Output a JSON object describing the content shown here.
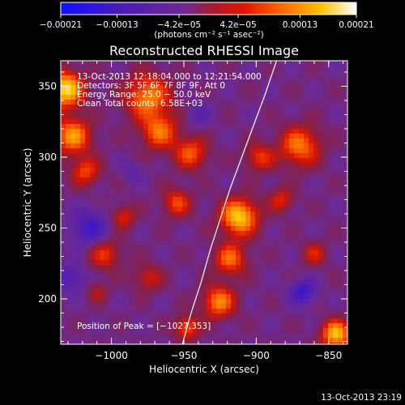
{
  "chart_data": {
    "type": "heatmap",
    "title": "Reconstructed RHESSI Image",
    "xlabel": "Heliocentric X (arcsec)",
    "ylabel": "Heliocentric Y (arcsec)",
    "xlim": [
      -1035,
      -837
    ],
    "ylim": [
      168,
      368
    ],
    "xticks": [
      -1000,
      -950,
      -900,
      -850
    ],
    "xtick_labels": [
      "−1000",
      "−950",
      "−900",
      "−850"
    ],
    "yticks": [
      200,
      250,
      300,
      350
    ],
    "ytick_labels": [
      "200",
      "250",
      "300",
      "350"
    ],
    "colorbar": {
      "colormap": "blue-purple-red-yellow-white",
      "range": [
        -0.00021,
        0.00021
      ],
      "tick_values": [
        -0.00021,
        -0.00013,
        -4.2e-05,
        4.2e-05,
        0.00013,
        0.00021
      ],
      "tick_labels": [
        "−0.00021",
        "−0.00013",
        "−4.2e−05",
        "4.2e−05",
        "0.00013",
        "0.00021"
      ],
      "units": "(photons cm⁻² s⁻¹ asec⁻²)",
      "colors": [
        "#1010ff",
        "#5a1aa8",
        "#7a2a9a",
        "#c01818",
        "#ff3000",
        "#ff8a00",
        "#ffd000",
        "#ffffff"
      ]
    },
    "annotations": [
      "13-Oct-2013 12:18:04.000 to 12:21:54.000",
      "Detectors: 3F 5F 6F 7F 8F 9F, Att 0",
      "Energy Range: 25.0 − 50.0 keV",
      "Clean     Total counts: 6.58E+03"
    ],
    "peak_label": "Position of Peak = [−1027,353]",
    "limb_curve": {
      "x": [
        -951,
        -945,
        -938,
        -932,
        -925,
        -918,
        -910,
        -902,
        -894,
        -886
      ],
      "y": [
        168,
        190,
        212,
        234,
        256,
        278,
        300,
        322,
        344,
        368
      ]
    },
    "sources": [
      {
        "x": -1032,
        "y": 348,
        "sigma": 9,
        "value": 0.00021
      },
      {
        "x": -1027,
        "y": 315,
        "sigma": 9,
        "value": 0.00016
      },
      {
        "x": -1018,
        "y": 290,
        "sigma": 7,
        "value": 0.00011
      },
      {
        "x": -1005,
        "y": 232,
        "sigma": 8,
        "value": 0.0001
      },
      {
        "x": -992,
        "y": 258,
        "sigma": 6,
        "value": 9e-05
      },
      {
        "x": -975,
        "y": 343,
        "sigma": 11,
        "value": 0.00015
      },
      {
        "x": -967,
        "y": 318,
        "sigma": 9,
        "value": 0.00013
      },
      {
        "x": -955,
        "y": 268,
        "sigma": 7,
        "value": 0.00011
      },
      {
        "x": -945,
        "y": 303,
        "sigma": 8,
        "value": 0.00012
      },
      {
        "x": -975,
        "y": 215,
        "sigma": 7,
        "value": 8e-05
      },
      {
        "x": -912,
        "y": 258,
        "sigma": 9,
        "value": 0.0002
      },
      {
        "x": -918,
        "y": 228,
        "sigma": 8,
        "value": 0.00013
      },
      {
        "x": -926,
        "y": 198,
        "sigma": 8,
        "value": 0.00015
      },
      {
        "x": -898,
        "y": 300,
        "sigma": 7,
        "value": 0.0001
      },
      {
        "x": -870,
        "y": 308,
        "sigma": 10,
        "value": 0.00014
      },
      {
        "x": -883,
        "y": 270,
        "sigma": 6,
        "value": 9e-05
      },
      {
        "x": -1010,
        "y": 205,
        "sigma": 5,
        "value": 6e-05
      },
      {
        "x": -845,
        "y": 175,
        "sigma": 7,
        "value": 0.00019
      },
      {
        "x": -860,
        "y": 232,
        "sigma": 6,
        "value": 8e-05
      },
      {
        "x": -948,
        "y": 180,
        "sigma": 6,
        "value": 0.00012
      },
      {
        "x": -1015,
        "y": 250,
        "sigma": 9,
        "value": -0.00011
      },
      {
        "x": -1028,
        "y": 215,
        "sigma": 7,
        "value": -8e-05
      },
      {
        "x": -868,
        "y": 205,
        "sigma": 6,
        "value": -0.00012
      },
      {
        "x": -940,
        "y": 330,
        "sigma": 6,
        "value": -5e-05
      },
      {
        "x": -985,
        "y": 290,
        "sigma": 5,
        "value": -5e-05
      }
    ]
  },
  "footer": {
    "timestamp": "13-Oct-2013 23:19"
  }
}
